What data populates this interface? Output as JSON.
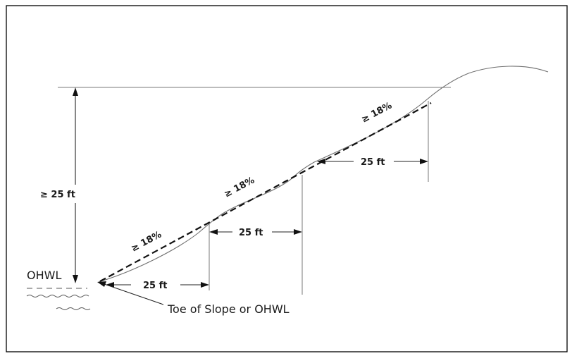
{
  "diagram": {
    "labels": {
      "height": "≥ 25 ft",
      "ohwl": "OHWL",
      "toe": "Toe of Slope or OHWL",
      "slope_lower": "≥ 18%",
      "slope_middle": "≥ 18%",
      "slope_upper": "≥ 18%",
      "run_lower": "25 ft",
      "run_middle": "25 ft",
      "run_upper": "25 ft"
    },
    "colors": {
      "frame": "#000000",
      "ground_line": "#6f6f6f",
      "dashed_slope": "#111111",
      "text": "#1a1a1a"
    }
  }
}
